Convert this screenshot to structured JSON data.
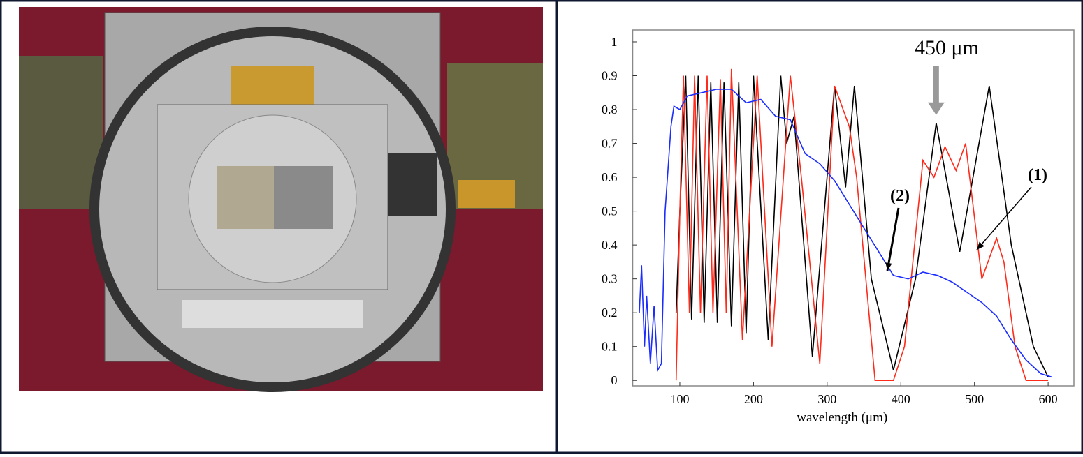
{
  "chart_data": {
    "type": "line",
    "x_label": "wavelength (μm)",
    "xlim": [
      36,
      635
    ],
    "xticks": [
      100,
      200,
      300,
      400,
      500,
      600
    ],
    "ylim": [
      -0.016,
      1.035
    ],
    "yticks": [
      0,
      0.1,
      0.2,
      0.3,
      0.4,
      0.5,
      0.6,
      0.7,
      0.8,
      0.9,
      1
    ],
    "annotations": [
      "450 μm",
      "(1)",
      "(2)"
    ],
    "series": [
      {
        "color": "#000000",
        "x": [
          95,
          100,
          108,
          116,
          125,
          133,
          142,
          151,
          160,
          170,
          180,
          190,
          200,
          220,
          237,
          245,
          255,
          280,
          310,
          325,
          337,
          360,
          390,
          420,
          448,
          480,
          520,
          550,
          580,
          600
        ],
        "values": [
          0.2,
          0.5,
          0.9,
          0.18,
          0.9,
          0.17,
          0.88,
          0.17,
          0.88,
          0.16,
          0.88,
          0.14,
          0.9,
          0.12,
          0.9,
          0.7,
          0.78,
          0.07,
          0.87,
          0.57,
          0.87,
          0.3,
          0.03,
          0.3,
          0.76,
          0.38,
          0.87,
          0.4,
          0.1,
          0.01
        ]
      },
      {
        "color": "#ff2a1a",
        "x": [
          95,
          100,
          105,
          113,
          120,
          128,
          137,
          145,
          155,
          163,
          170,
          185,
          205,
          225,
          250,
          265,
          290,
          310,
          330,
          340,
          365,
          390,
          405,
          430,
          445,
          460,
          475,
          488,
          510,
          530,
          540,
          555,
          570,
          600
        ],
        "values": [
          0,
          0.5,
          0.9,
          0.2,
          0.9,
          0.2,
          0.9,
          0.2,
          0.89,
          0.2,
          0.92,
          0.12,
          0.9,
          0.1,
          0.9,
          0.6,
          0.05,
          0.87,
          0.75,
          0.6,
          0,
          0,
          0.1,
          0.65,
          0.6,
          0.69,
          0.62,
          0.7,
          0.3,
          0.42,
          0.35,
          0.1,
          0,
          0
        ]
      },
      {
        "color": "#1a2cff",
        "x": [
          45,
          48,
          52,
          55,
          60,
          65,
          70,
          75,
          80,
          88,
          92,
          100,
          110,
          130,
          150,
          170,
          190,
          210,
          230,
          250,
          270,
          290,
          310,
          330,
          350,
          370,
          390,
          410,
          430,
          450,
          470,
          490,
          510,
          530,
          550,
          570,
          590,
          605
        ],
        "values": [
          0.2,
          0.34,
          0.1,
          0.25,
          0.05,
          0.22,
          0.03,
          0.05,
          0.5,
          0.75,
          0.81,
          0.8,
          0.84,
          0.85,
          0.86,
          0.86,
          0.82,
          0.83,
          0.78,
          0.77,
          0.67,
          0.64,
          0.59,
          0.52,
          0.45,
          0.38,
          0.31,
          0.3,
          0.32,
          0.31,
          0.29,
          0.26,
          0.23,
          0.19,
          0.12,
          0.06,
          0.02,
          0.01
        ]
      }
    ]
  }
}
